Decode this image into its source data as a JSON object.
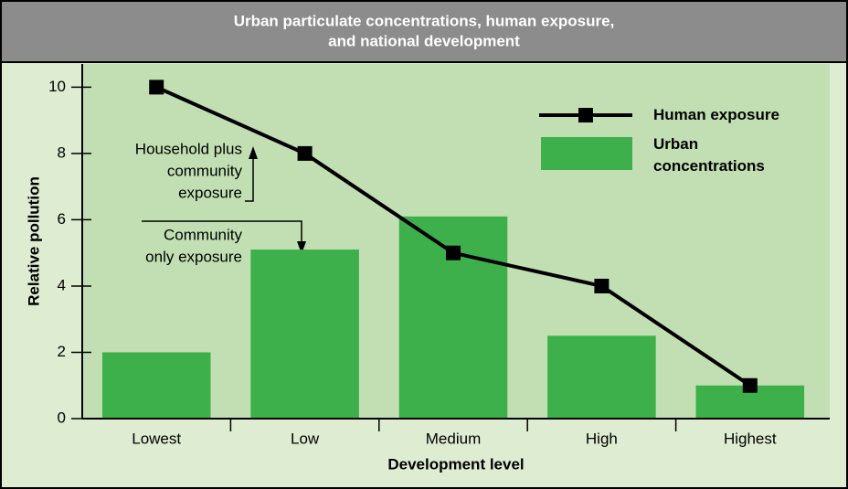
{
  "chart_data": {
    "type": "bar_line",
    "title": [
      "Urban particulate concentrations, human exposure,",
      "and national development"
    ],
    "xlabel": "Development level",
    "ylabel": "Relative pollution",
    "categories": [
      "Lowest",
      "Low",
      "Medium",
      "High",
      "Highest"
    ],
    "series": [
      {
        "name": "Human exposure",
        "type": "line",
        "color": "#000000",
        "values": [
          10,
          8,
          5,
          4,
          1
        ]
      },
      {
        "name": "Urban concentrations",
        "type": "bar",
        "color": "#3db04b",
        "values": [
          2,
          5.1,
          6.1,
          2.5,
          1
        ]
      }
    ],
    "ylim": [
      0,
      10.7
    ],
    "yticks": [
      0,
      2,
      4,
      6,
      8,
      10
    ],
    "annotations": [
      {
        "lines": [
          "Household plus",
          "community",
          "exposure"
        ]
      },
      {
        "lines": [
          "Community",
          "only exposure"
        ]
      }
    ]
  }
}
